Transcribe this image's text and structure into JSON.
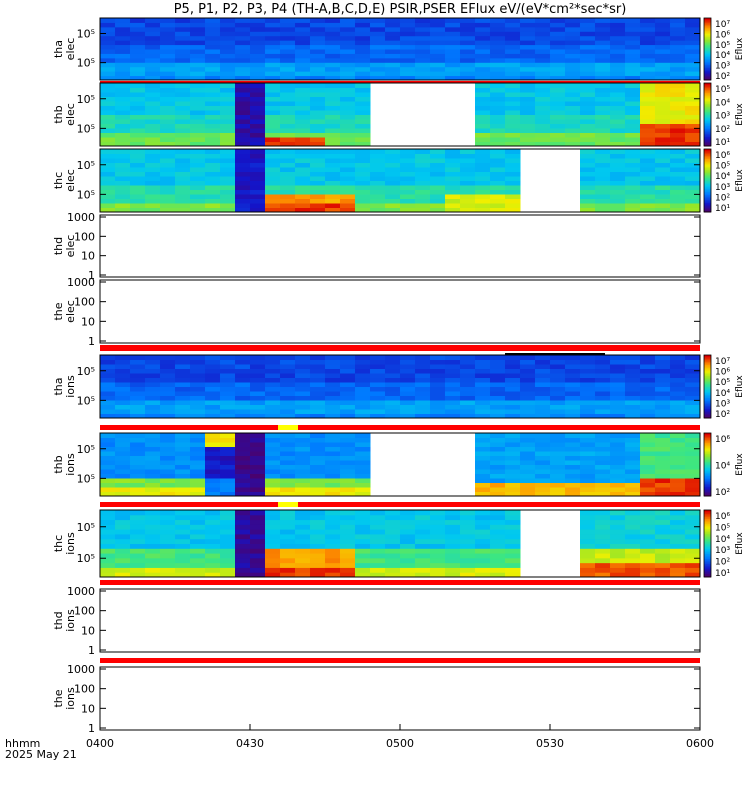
{
  "chart_data": {
    "type": "heatmap",
    "title": "P5, P1, P2, P3, P4 (TH-A,B,C,D,E) PSIR,PSER EFlux eV/(eV*cm²*sec*sr)",
    "x_tick_labels": [
      "0400",
      "0430",
      "0500",
      "0530",
      "0600"
    ],
    "x_range": [
      "04:00",
      "06:00"
    ],
    "x_label": "hhmm",
    "date_label": "2025 May 21",
    "colorbar_label": "Eflux",
    "panels": [
      {
        "id": "tha-elec",
        "ylabel": [
          "tha",
          "elec"
        ],
        "yticks": [
          "10⁵",
          "10⁵"
        ],
        "cbar": [
          "10⁷",
          "10⁶",
          "10⁵",
          "10⁴",
          "10³",
          "10²"
        ],
        "map": "tha"
      },
      {
        "id": "thb-elec",
        "ylabel": [
          "thb",
          "elec"
        ],
        "yticks": [
          "10⁵",
          "10⁵"
        ],
        "cbar": [
          "10⁵",
          "10⁴",
          "10³",
          "10²",
          "10¹"
        ],
        "map": "thbe"
      },
      {
        "id": "thc-elec",
        "ylabel": [
          "thc",
          "elec"
        ],
        "yticks": [
          "10⁵",
          "10⁵"
        ],
        "cbar": [
          "10⁶",
          "10⁵",
          "10⁴",
          "10³",
          "10²",
          "10¹"
        ],
        "map": "thce"
      },
      {
        "id": "thd-elec",
        "ylabel": [
          "thd",
          "elec"
        ],
        "yticks": [
          "1000",
          "100",
          "10",
          "1"
        ],
        "empty": true
      },
      {
        "id": "the-elec",
        "ylabel": [
          "the",
          "elec"
        ],
        "yticks": [
          "1000",
          "100",
          "10",
          "1"
        ],
        "empty": true
      },
      {
        "id": "tha-ions",
        "ylabel": [
          "tha",
          "ions"
        ],
        "yticks": [
          "10⁵",
          "10⁵"
        ],
        "cbar": [
          "10⁷",
          "10⁶",
          "10⁵",
          "10⁴",
          "10³",
          "10²"
        ],
        "map": "tha"
      },
      {
        "id": "thb-ions",
        "ylabel": [
          "thb",
          "ions"
        ],
        "yticks": [
          "10⁵",
          "10⁵"
        ],
        "cbar": [
          "10⁶",
          "10⁴",
          "10²"
        ],
        "map": "thbi"
      },
      {
        "id": "thc-ions",
        "ylabel": [
          "thc",
          "ions"
        ],
        "yticks": [
          "10⁵",
          "10⁵"
        ],
        "cbar": [
          "10⁶",
          "10⁵",
          "10⁴",
          "10³",
          "10²",
          "10¹"
        ],
        "map": "thci"
      },
      {
        "id": "thd-ions",
        "ylabel": [
          "thd",
          "ions"
        ],
        "yticks": [
          "1000",
          "100",
          "10",
          "1"
        ],
        "empty": true
      },
      {
        "id": "the-ions",
        "ylabel": [
          "the",
          "ions"
        ],
        "yticks": [
          "1000",
          "100",
          "10",
          "1"
        ],
        "empty": true
      }
    ],
    "data_gaps": [
      {
        "panel": "thb-elec",
        "from": "04:55",
        "to": "05:15"
      },
      {
        "panel": "thc-elec",
        "from": "05:25",
        "to": "05:40"
      },
      {
        "panel": "thb-ions",
        "from": "04:55",
        "to": "05:15"
      },
      {
        "panel": "thc-ions",
        "from": "05:25",
        "to": "05:40"
      }
    ],
    "colorscale": "rainbow",
    "grid": false,
    "legend": "colorbars right of panels"
  }
}
